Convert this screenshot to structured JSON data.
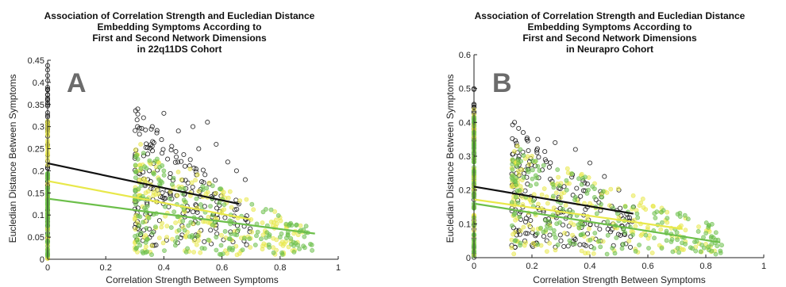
{
  "colors": {
    "black_series": "#111111",
    "green_series": "#6cbf4a",
    "yellow_series": "#e8e84a",
    "axis": "#222222",
    "panel_label": "#6b6b6b"
  },
  "chart_data": [
    {
      "type": "scatter",
      "panel_label": "A",
      "title_lines": [
        "Association of Correlation Strength and Eucledian Distance",
        "Embedding Symptoms According to",
        "First and Second Network Dimensions",
        "in 22q11DS Cohort"
      ],
      "xlabel": "Correlation Strength Between Symptoms",
      "ylabel": "Eucledian Distance Between Symptoms",
      "xlim": [
        0,
        1
      ],
      "ylim": [
        0,
        0.45
      ],
      "xticks": [
        "0",
        "0.2",
        "0.4",
        "0.6",
        "0.8",
        "1"
      ],
      "yticks": [
        "0",
        "0.05",
        "0.1",
        "0.15",
        "0.2",
        "0.25",
        "0.3",
        "0.35",
        "0.4",
        "0.45"
      ],
      "xtick_values": [
        0,
        0.2,
        0.4,
        0.6,
        0.8,
        1
      ],
      "ytick_values": [
        0,
        0.05,
        0.1,
        0.15,
        0.2,
        0.25,
        0.3,
        0.35,
        0.4,
        0.45
      ],
      "grid": false,
      "series": [
        {
          "color": "#111111",
          "zero_cluster": {
            "y_range": [
              0.0,
              0.44
            ]
          },
          "cluster": {
            "x_range": [
              0.3,
              0.7
            ],
            "y_range": [
              0.03,
              0.34
            ]
          },
          "points": [
            [
              0.31,
              0.34
            ],
            [
              0.33,
              0.32
            ],
            [
              0.36,
              0.3
            ],
            [
              0.4,
              0.33
            ],
            [
              0.45,
              0.29
            ],
            [
              0.5,
              0.3
            ],
            [
              0.55,
              0.31
            ],
            [
              0.58,
              0.26
            ],
            [
              0.62,
              0.22
            ],
            [
              0.65,
              0.2
            ],
            [
              0.68,
              0.18
            ],
            [
              0.35,
              0.2
            ],
            [
              0.42,
              0.15
            ],
            [
              0.48,
              0.12
            ],
            [
              0.52,
              0.25
            ]
          ],
          "fit": {
            "x": [
              0,
              0.66
            ],
            "y": [
              0.217,
              0.125
            ]
          }
        },
        {
          "color": "#e8e84a",
          "zero_cluster": {
            "y_range": [
              0.0,
              0.32
            ]
          },
          "cluster": {
            "x_range": [
              0.3,
              0.88
            ],
            "y_range": [
              0.01,
              0.27
            ]
          },
          "points": [
            [
              0.32,
              0.26
            ],
            [
              0.38,
              0.22
            ],
            [
              0.46,
              0.18
            ],
            [
              0.55,
              0.14
            ],
            [
              0.6,
              0.11
            ],
            [
              0.7,
              0.09
            ],
            [
              0.75,
              0.06
            ],
            [
              0.82,
              0.04
            ],
            [
              0.85,
              0.02
            ],
            [
              0.41,
              0.05
            ],
            [
              0.5,
              0.08
            ]
          ],
          "fit": {
            "x": [
              0,
              0.7
            ],
            "y": [
              0.177,
              0.09
            ]
          }
        },
        {
          "color": "#6cbf4a",
          "zero_cluster": {
            "y_range": [
              0.0,
              0.2
            ]
          },
          "cluster": {
            "x_range": [
              0.3,
              0.92
            ],
            "y_range": [
              0.01,
              0.25
            ]
          },
          "points": [
            [
              0.33,
              0.24
            ],
            [
              0.4,
              0.2
            ],
            [
              0.47,
              0.16
            ],
            [
              0.56,
              0.12
            ],
            [
              0.63,
              0.1
            ],
            [
              0.72,
              0.08
            ],
            [
              0.8,
              0.05
            ],
            [
              0.88,
              0.03
            ],
            [
              0.91,
              0.02
            ],
            [
              0.44,
              0.04
            ],
            [
              0.58,
              0.05
            ]
          ],
          "fit": {
            "x": [
              0,
              0.92
            ],
            "y": [
              0.137,
              0.058
            ]
          }
        }
      ]
    },
    {
      "type": "scatter",
      "panel_label": "B",
      "title_lines": [
        "Association of Correlation Strength and Eucledian Distance",
        "Embedding Symptoms According to",
        "First and Second Network Dimensions",
        "in Neurapro Cohort"
      ],
      "xlabel": "Correlation Strength Between Symptoms",
      "ylabel": "Eucledian Distance Between Symptoms",
      "xlim": [
        0,
        1
      ],
      "ylim": [
        0,
        0.6
      ],
      "xticks": [
        "0",
        "0.2",
        "0.4",
        "0.6",
        "0.8",
        "1"
      ],
      "yticks": [
        "0",
        "0.1",
        "0.2",
        "0.3",
        "0.4",
        "0.5",
        "0.6"
      ],
      "xtick_values": [
        0,
        0.2,
        0.4,
        0.6,
        0.8,
        1
      ],
      "ytick_values": [
        0,
        0.1,
        0.2,
        0.3,
        0.4,
        0.5,
        0.6
      ],
      "grid": false,
      "series": [
        {
          "color": "#111111",
          "zero_cluster": {
            "y_range": [
              0.0,
              0.5
            ]
          },
          "cluster": {
            "x_range": [
              0.13,
              0.55
            ],
            "y_range": [
              0.03,
              0.4
            ]
          },
          "points": [
            [
              0.14,
              0.4
            ],
            [
              0.17,
              0.37
            ],
            [
              0.22,
              0.35
            ],
            [
              0.28,
              0.34
            ],
            [
              0.35,
              0.32
            ],
            [
              0.4,
              0.28
            ],
            [
              0.45,
              0.24
            ],
            [
              0.5,
              0.2
            ],
            [
              0.55,
              0.15
            ],
            [
              0.48,
              0.1
            ],
            [
              0.3,
              0.05
            ]
          ],
          "fit": {
            "x": [
              0,
              0.55
            ],
            "y": [
              0.21,
              0.13
            ]
          }
        },
        {
          "color": "#e8e84a",
          "zero_cluster": {
            "y_range": [
              0.0,
              0.45
            ]
          },
          "cluster": {
            "x_range": [
              0.13,
              0.83
            ],
            "y_range": [
              0.01,
              0.33
            ]
          },
          "points": [
            [
              0.15,
              0.33
            ],
            [
              0.2,
              0.3
            ],
            [
              0.3,
              0.22
            ],
            [
              0.4,
              0.16
            ],
            [
              0.5,
              0.12
            ],
            [
              0.6,
              0.09
            ],
            [
              0.7,
              0.06
            ],
            [
              0.8,
              0.04
            ],
            [
              0.83,
              0.02
            ]
          ],
          "fit": {
            "x": [
              0,
              0.72
            ],
            "y": [
              0.172,
              0.085
            ]
          }
        },
        {
          "color": "#6cbf4a",
          "zero_cluster": {
            "y_range": [
              0.0,
              0.42
            ]
          },
          "cluster": {
            "x_range": [
              0.13,
              0.86
            ],
            "y_range": [
              0.01,
              0.32
            ]
          },
          "points": [
            [
              0.16,
              0.32
            ],
            [
              0.22,
              0.27
            ],
            [
              0.32,
              0.2
            ],
            [
              0.42,
              0.15
            ],
            [
              0.52,
              0.11
            ],
            [
              0.62,
              0.08
            ],
            [
              0.72,
              0.06
            ],
            [
              0.82,
              0.04
            ],
            [
              0.85,
              0.02
            ]
          ],
          "fit": {
            "x": [
              0,
              0.85
            ],
            "y": [
              0.16,
              0.045
            ]
          }
        }
      ]
    }
  ]
}
